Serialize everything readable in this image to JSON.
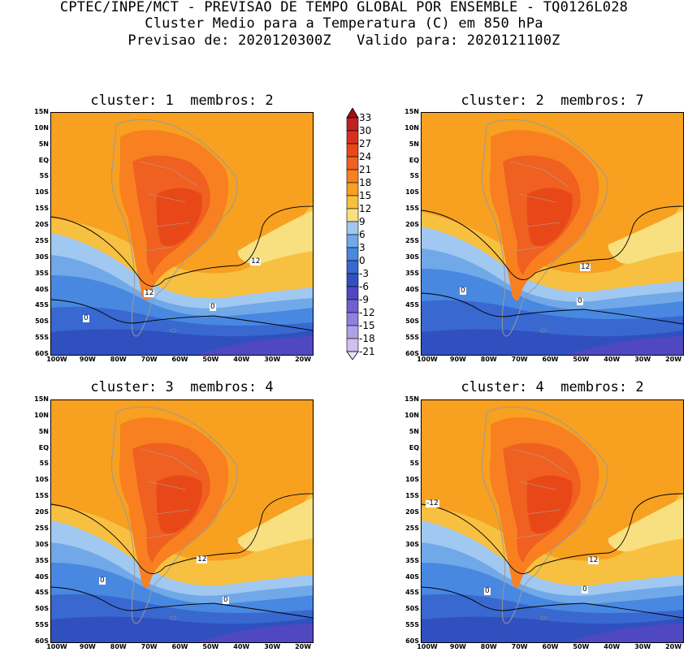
{
  "header": {
    "line1": "CPTEC/INPE/MCT - PREVISAO DE TEMPO GLOBAL POR ENSEMBLE - TQ0126L028",
    "line2": "Cluster Medio para a Temperatura (C) em 850 hPa",
    "line3": "Previsao de: 2020120300Z   Valido para: 2020121100Z"
  },
  "panels": [
    {
      "title": "cluster: 1  membros: 2"
    },
    {
      "title": "cluster: 2  membros: 7"
    },
    {
      "title": "cluster: 3  membros: 4"
    },
    {
      "title": "cluster: 4  membros: 2"
    }
  ],
  "axes": {
    "lat_labels": [
      "15N",
      "10N",
      "5N",
      "EQ",
      "5S",
      "10S",
      "15S",
      "20S",
      "25S",
      "30S",
      "35S",
      "40S",
      "45S",
      "50S",
      "55S",
      "60S"
    ],
    "lon_labels": [
      "100W",
      "90W",
      "80W",
      "70W",
      "60W",
      "50W",
      "40W",
      "30W",
      "20W"
    ]
  },
  "colorbar": {
    "levels": [
      "33",
      "30",
      "27",
      "24",
      "21",
      "18",
      "15",
      "12",
      "9",
      "6",
      "3",
      "0",
      "-3",
      "-6",
      "-9",
      "-12",
      "-15",
      "-18",
      "-21"
    ],
    "colors": [
      "#a01010",
      "#c02020",
      "#d83020",
      "#e84818",
      "#f06020",
      "#f88020",
      "#f8a020",
      "#f8c040",
      "#f8e080",
      "#a0c8f0",
      "#70a8e8",
      "#4888e0",
      "#3868d0",
      "#3050c0",
      "#5048c0",
      "#7060d0",
      "#9080e0",
      "#b0a0e8",
      "#d0c0f0",
      "#e8e0f8"
    ]
  },
  "contour_labels": {
    "p1": [
      "12",
      "12",
      "0",
      "0"
    ],
    "p2": [
      "12",
      "0",
      "0"
    ],
    "p3": [
      "12",
      "0",
      "0"
    ],
    "p4": [
      "-12",
      "12",
      "0",
      "0"
    ]
  }
}
